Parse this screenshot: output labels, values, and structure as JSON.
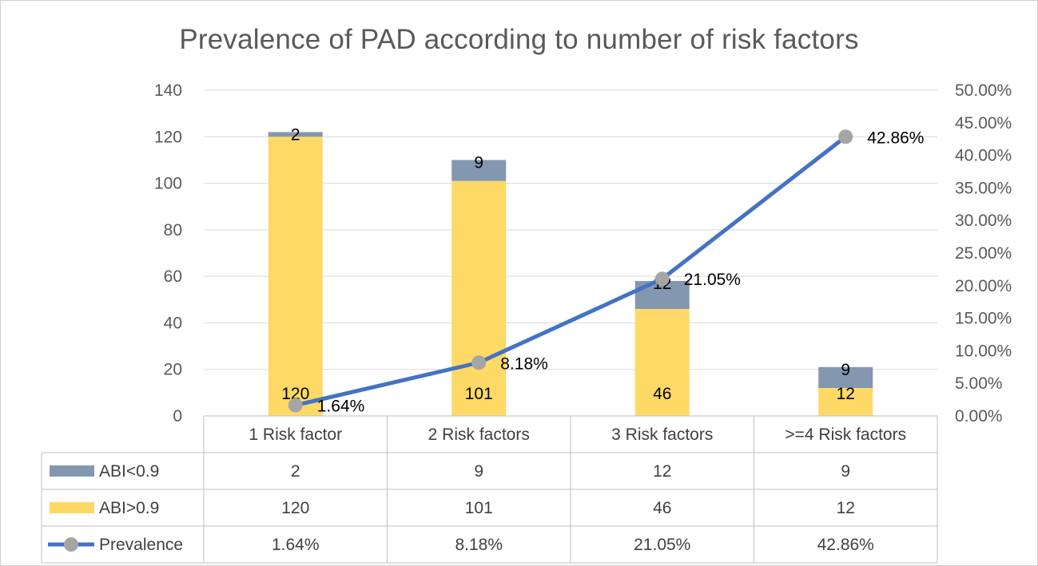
{
  "chart_data": {
    "type": "bar",
    "title": "Prevalence of PAD according to number of risk factors",
    "categories": [
      "1 Risk factor",
      "2 Risk factors",
      "3 Risk factors",
      ">=4 Risk factors"
    ],
    "series": [
      {
        "name": "ABI<0.9",
        "type": "bar",
        "stacked": true,
        "values": [
          2,
          9,
          12,
          9
        ],
        "color": "#8497B0",
        "labels": [
          "2",
          "9",
          "12",
          "9"
        ]
      },
      {
        "name": "ABI>0.9",
        "type": "bar",
        "stacked": true,
        "values": [
          120,
          101,
          46,
          12
        ],
        "color": "#FFD966",
        "labels": [
          "120",
          "101",
          "46",
          "12"
        ]
      },
      {
        "name": "Prevalence",
        "type": "line",
        "axis": "secondary",
        "values": [
          1.64,
          8.18,
          21.05,
          42.86
        ],
        "color": "#4472C4",
        "marker_color": "#A5A5A5",
        "labels": [
          "1.64%",
          "8.18%",
          "21.05%",
          "42.86%"
        ]
      }
    ],
    "ylim": [
      0,
      140
    ],
    "y_ticks": [
      "0",
      "20",
      "40",
      "60",
      "80",
      "100",
      "120",
      "140"
    ],
    "y2lim": [
      0,
      50
    ],
    "y2_ticks": [
      "0.00%",
      "5.00%",
      "10.00%",
      "15.00%",
      "20.00%",
      "25.00%",
      "30.00%",
      "35.00%",
      "40.00%",
      "45.00%",
      "50.00%"
    ],
    "grid": true,
    "legend": "data-table",
    "data_table": {
      "rows": [
        {
          "name": "ABI<0.9",
          "cells": [
            "2",
            "9",
            "12",
            "9"
          ]
        },
        {
          "name": "ABI>0.9",
          "cells": [
            "120",
            "101",
            "46",
            "12"
          ]
        },
        {
          "name": "Prevalence",
          "cells": [
            "1.64%",
            "8.18%",
            "21.05%",
            "42.86%"
          ]
        }
      ]
    }
  }
}
